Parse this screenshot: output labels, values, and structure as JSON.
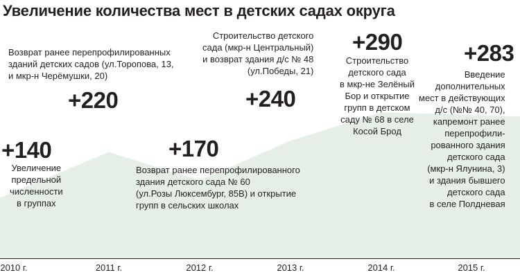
{
  "chart_data": {
    "type": "area",
    "title": "Увеличение количества мест в детских садах округа",
    "x": [
      "2010 г.",
      "2011 г.",
      "2012 г.",
      "2013 г.",
      "2014 г.",
      "2015 г."
    ],
    "values": [
      140,
      220,
      170,
      240,
      290,
      283
    ],
    "value_labels": [
      "+140",
      "+220",
      "+170",
      "+240",
      "+290",
      "+283"
    ],
    "annotations": [
      "Увеличение\nпредельной\nчисленности\nв группах",
      "Возврат ранее перепрофилированных\nзданий детских садов (ул.Торопова, 13,\nи мкр-н Черёмушки, 20)",
      "Возврат ранее перепрофилированного\nздания детского сада № 60\n(ул.Розы Люксембург, 85В) и открытие\nгрупп в сельских школах",
      "Строительство детского\nсада (мкр-н Центральный)\nи возврат здания д/с № 48\n(ул.Победы, 21)",
      "Строительство\nдетского сада\nв мкр-не Зелёный\nБор и открытие\nгрупп в детском\nсаду № 68 в селе\nКосой Брод",
      "Введение\nдополнительных\nмест в действующих\nд/с (№№ 40, 70),\nкапремонт ранее\nперепрофили-\nрованного здания\nдетского сада\n(мкр-н Ялунина, 3)\nи здания бывшего\nдетского сада\nв селе Полдневая"
    ],
    "area_color": "#e5efe8",
    "axis_color": "#231f20",
    "grid": false,
    "legend": "none"
  }
}
